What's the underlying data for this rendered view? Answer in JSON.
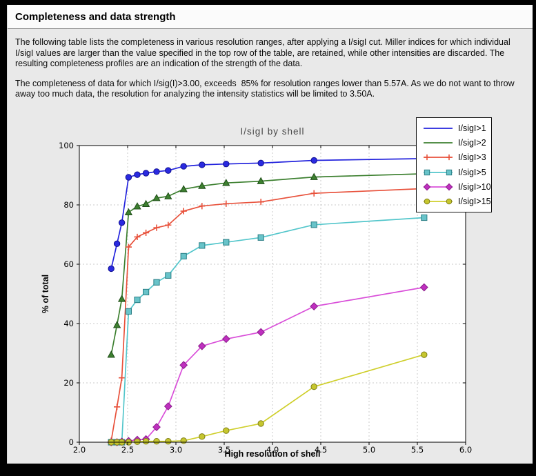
{
  "window": {
    "title": "Completeness and data strength"
  },
  "paragraphs": [
    "The following table lists the completeness in various resolution ranges, after applying a I/sigI cut. Miller indices for which individual I/sigI values are larger than the value specified in the top row of the table, are retained, while other intensities are discarded. The resulting completeness profiles are an indication of the strength of the data.",
    "The completeness of data for which I/sig(I)>3.00, exceeds  85% for resolution ranges lower than 5.57A. As we do not want to throw away too much data, the resolution for analyzing the intensity statistics will be limited to 3.50A."
  ],
  "chart_data": {
    "type": "line",
    "title": "I/sigI by shell",
    "xlabel": "High resolution of shell",
    "ylabel": "% of total",
    "xlim": [
      2.0,
      6.0
    ],
    "ylim": [
      0,
      100
    ],
    "x_ticks": [
      2.0,
      2.5,
      3.0,
      3.5,
      4.0,
      4.5,
      5.0,
      5.5,
      6.0
    ],
    "x_tick_labels": [
      "2.0",
      "2.5",
      "3.0",
      "3.5",
      "4.0",
      "4.5",
      "5.0",
      "5.5",
      "6.0"
    ],
    "y_ticks": [
      0,
      20,
      40,
      60,
      80,
      100
    ],
    "y_tick_labels": [
      "0",
      "20",
      "40",
      "60",
      "80",
      "100"
    ],
    "grid": true,
    "legend_position": "top-right",
    "x": [
      2.33,
      2.39,
      2.44,
      2.51,
      2.6,
      2.69,
      2.8,
      2.92,
      3.08,
      3.27,
      3.52,
      3.88,
      4.43,
      5.57
    ],
    "series": [
      {
        "name": "I/sigI>1",
        "color": "#2323dd",
        "marker": "circle",
        "marker_fill": "#2a2ae0",
        "marker_edge": "#0f0f8f",
        "legend_sample": "line",
        "values": [
          58.5,
          66.9,
          74.0,
          89.3,
          90.2,
          90.7,
          91.2,
          91.6,
          93.0,
          93.5,
          93.8,
          94.1,
          95.0,
          95.6
        ]
      },
      {
        "name": "I/sigI>2",
        "color": "#3d8030",
        "marker": "triangle",
        "marker_fill": "#3d8030",
        "marker_edge": "#1e4d17",
        "legend_sample": "line",
        "values": [
          29.5,
          39.5,
          48.3,
          77.5,
          79.5,
          80.3,
          82.3,
          82.9,
          85.3,
          86.4,
          87.4,
          88.0,
          89.4,
          90.5
        ]
      },
      {
        "name": "I/sigI>3",
        "color": "#e8513b",
        "marker": "plus",
        "marker_fill": "#e8513b",
        "marker_edge": "#e8513b",
        "legend_sample": "line+markers",
        "values": [
          0.5,
          11.9,
          21.7,
          65.8,
          69.2,
          70.6,
          72.3,
          73.2,
          77.9,
          79.6,
          80.4,
          81.0,
          83.9,
          85.5
        ]
      },
      {
        "name": "I/sigI>5",
        "color": "#53c6cb",
        "marker": "square",
        "marker_fill": "#68c3c9",
        "marker_edge": "#2a7e85",
        "legend_sample": "line+markers",
        "values": [
          0.0,
          0.0,
          0.0,
          44.1,
          48.0,
          50.6,
          53.9,
          56.2,
          62.7,
          66.3,
          67.4,
          69.0,
          73.3,
          75.7
        ]
      },
      {
        "name": "I/sigI>10",
        "color": "#d94fd9",
        "marker": "diamond",
        "marker_fill": "#bf2fbf",
        "marker_edge": "#8a1d8a",
        "legend_sample": "line+markers",
        "values": [
          0.0,
          0.0,
          0.2,
          0.4,
          0.8,
          1.0,
          5.1,
          12.1,
          26.0,
          32.4,
          34.8,
          37.1,
          45.8,
          52.2
        ]
      },
      {
        "name": "I/sigI>15",
        "color": "#cfcf2c",
        "marker": "circle",
        "marker_fill": "#c6c62e",
        "marker_edge": "#7e7e18",
        "legend_sample": "line+markers",
        "values": [
          0.0,
          0.0,
          0.0,
          0.0,
          0.2,
          0.3,
          0.3,
          0.3,
          0.5,
          1.9,
          3.9,
          6.3,
          18.7,
          29.5
        ]
      }
    ]
  }
}
